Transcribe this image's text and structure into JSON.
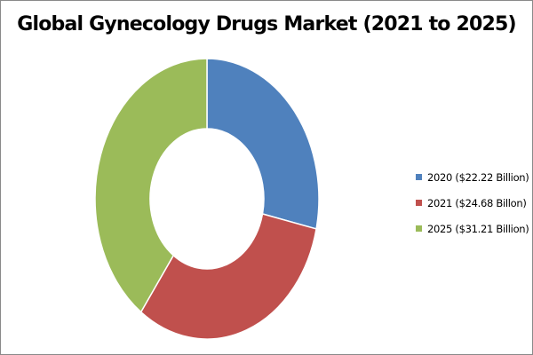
{
  "chart_data": {
    "type": "pie",
    "variant": "donut",
    "title": "Global Gynecology Drugs Market (2021 to 2025)",
    "categories": [
      "2020",
      "2021",
      "2025"
    ],
    "values": [
      22.22,
      24.68,
      31.21
    ],
    "unit": "Billion",
    "legend_position": "right",
    "series": [
      {
        "name": "2020",
        "value": 22.22,
        "label": "2020 ($22.22 Billion)",
        "color": "#4F81BD"
      },
      {
        "name": "2021",
        "value": 24.68,
        "label": "2021 ($24.68 Billon)",
        "color": "#C0504D"
      },
      {
        "name": "2025",
        "value": 31.21,
        "label": "2025 ($31.21 Billion)",
        "color": "#9BBB59"
      }
    ]
  }
}
